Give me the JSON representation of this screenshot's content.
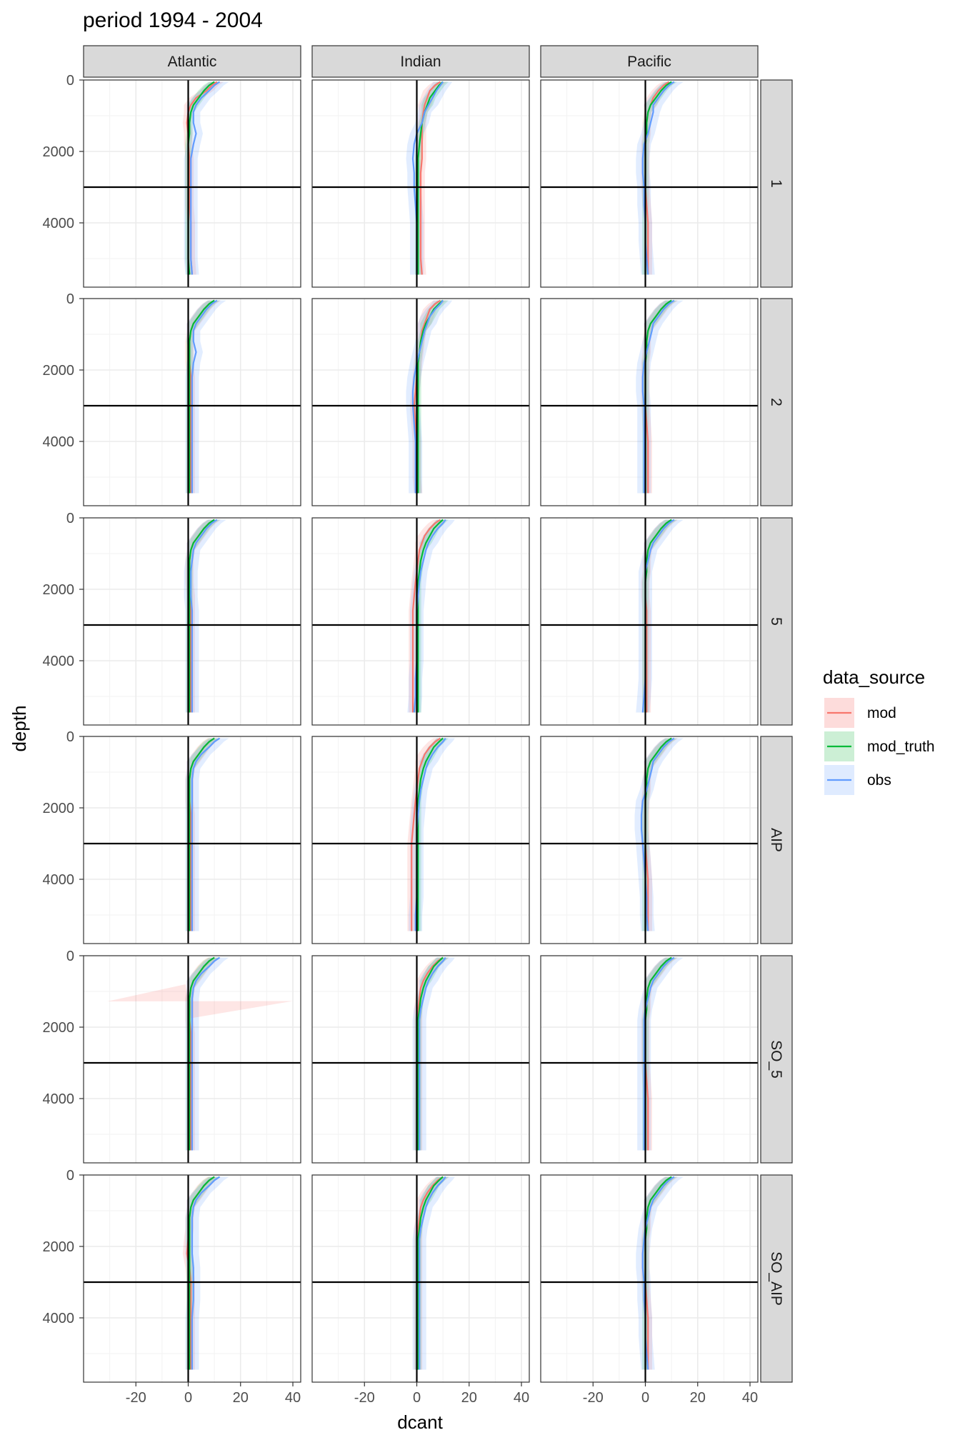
{
  "chart_data": {
    "type": "line",
    "title": "period 1994 - 2004",
    "xlabel": "dcant",
    "ylabel": "depth",
    "xlim": [
      -40,
      43
    ],
    "ylim": [
      0,
      5800
    ],
    "y_reversed": true,
    "x_ticks": [
      "-20",
      "0",
      "20",
      "40"
    ],
    "x_tick_values": [
      -20,
      0,
      20,
      40
    ],
    "y_ticks": [
      "0",
      "2000",
      "4000"
    ],
    "y_tick_values": [
      0,
      2000,
      4000
    ],
    "hline_depth": 3000,
    "vline_dcant": 0,
    "grid": true,
    "columns": [
      "Atlantic",
      "Indian",
      "Pacific"
    ],
    "rows": [
      "1",
      "2",
      "5",
      "AIP",
      "SO_5",
      "SO_AIP"
    ],
    "legend": {
      "title": "data_source",
      "position": "right",
      "entries": [
        {
          "name": "mod",
          "color": "#F8766D",
          "fill": "#FDDCDB"
        },
        {
          "name": "mod_truth",
          "color": "#00BA38",
          "fill": "#CCEFD5"
        },
        {
          "name": "obs",
          "color": "#619CFF",
          "fill": "#DFEBFF"
        }
      ]
    },
    "depths": [
      50,
      150,
      300,
      500,
      700,
      900,
      1200,
      1500,
      1800,
      2200,
      2600,
      3000,
      3500,
      4000,
      4500,
      5000,
      5450
    ],
    "panels": [
      {
        "row": "1",
        "col": "Atlantic",
        "mod": [
          11,
          9,
          7,
          3,
          1,
          0,
          -0.5,
          0,
          0,
          0.5,
          0.5,
          0.5,
          0.5,
          1,
          1,
          1,
          1.5
        ],
        "mod_truth": [
          10,
          8,
          6,
          4,
          2,
          1,
          0.5,
          0.5,
          0,
          0,
          0,
          0,
          0,
          0,
          0,
          0,
          0.5
        ],
        "obs": [
          12,
          10,
          8,
          5,
          3,
          2,
          2,
          3,
          2,
          1,
          1,
          1,
          1,
          1,
          1,
          1,
          1.5
        ]
      },
      {
        "row": "1",
        "col": "Indian",
        "mod": [
          9,
          7,
          5,
          4,
          3,
          2.5,
          2,
          2,
          2,
          2,
          1.5,
          1.5,
          1.5,
          1.5,
          1.5,
          1.5,
          2
        ],
        "mod_truth": [
          10,
          8.5,
          7,
          5,
          4,
          3,
          2,
          1.5,
          1,
          0.5,
          0.5,
          0.5,
          0.5,
          0.5,
          0.5,
          0.5,
          0.5
        ],
        "obs": [
          10,
          9,
          7.5,
          6,
          4.5,
          3,
          2,
          0,
          -1,
          -1.5,
          -1,
          -1,
          -0.5,
          0,
          0,
          0,
          0
        ]
      },
      {
        "row": "1",
        "col": "Pacific",
        "mod": [
          9,
          7,
          5,
          3,
          2,
          1,
          0.5,
          0.5,
          0,
          0,
          0,
          0,
          0.5,
          1,
          1,
          1,
          1
        ],
        "mod_truth": [
          10,
          8,
          6,
          4,
          2,
          1,
          0.5,
          0.5,
          0,
          0,
          0,
          0,
          0,
          0,
          0,
          0,
          0
        ],
        "obs": [
          11,
          9,
          7,
          5,
          3,
          3,
          2,
          1,
          -0.5,
          -1,
          -1,
          -0.5,
          -0.5,
          0,
          0,
          0.5,
          1
        ]
      },
      {
        "row": "2",
        "col": "Atlantic",
        "mod": [
          10,
          8,
          6,
          4,
          2,
          1,
          0.5,
          0.5,
          0.5,
          1,
          1,
          1,
          1,
          1,
          1,
          1,
          1
        ],
        "mod_truth": [
          10,
          8,
          6,
          4,
          2,
          1,
          0.5,
          0.5,
          0.5,
          0.5,
          0.5,
          0.5,
          0.5,
          0.5,
          0.5,
          0.5,
          0.5
        ],
        "obs": [
          11,
          9,
          7,
          5,
          3,
          2,
          2,
          3,
          2,
          1.5,
          1.5,
          1.5,
          1.5,
          1.5,
          1.5,
          1.5,
          1.5
        ]
      },
      {
        "row": "2",
        "col": "Indian",
        "mod": [
          9,
          7,
          5,
          4,
          3,
          2,
          1.5,
          1,
          0.5,
          0,
          -0.5,
          -1,
          -0.5,
          0,
          0,
          0,
          0.5
        ],
        "mod_truth": [
          10,
          8.5,
          6.5,
          5,
          3.5,
          2.5,
          1.5,
          1,
          0.5,
          0.5,
          0.5,
          0.5,
          0.5,
          0.5,
          0.5,
          0.5,
          0.5
        ],
        "obs": [
          10,
          9,
          7,
          5,
          4,
          3,
          2,
          1,
          0,
          -1,
          -1.5,
          -1.5,
          -1,
          -0.5,
          -0.5,
          -0.5,
          -0.5
        ]
      },
      {
        "row": "2",
        "col": "Pacific",
        "mod": [
          10,
          8,
          6,
          4,
          2,
          1,
          0.5,
          0.5,
          0,
          0,
          0,
          0,
          0.5,
          1,
          1,
          1,
          1
        ],
        "mod_truth": [
          10,
          8,
          6,
          4,
          2,
          1,
          0.5,
          0.5,
          0,
          0,
          0,
          0,
          0,
          0,
          0,
          0,
          0
        ],
        "obs": [
          11,
          9,
          7,
          5,
          3,
          2.5,
          1.5,
          0.5,
          -0.5,
          -1,
          -1,
          -0.5,
          -0.5,
          -0.5,
          -0.5,
          -0.5,
          -0.5
        ]
      },
      {
        "row": "5",
        "col": "Atlantic",
        "mod": [
          10,
          8,
          6,
          4,
          2,
          1,
          0.5,
          0.5,
          0.5,
          1,
          1,
          1,
          1,
          1,
          1,
          1,
          1
        ],
        "mod_truth": [
          10,
          8,
          6,
          4,
          2,
          1,
          0.5,
          0.5,
          0.5,
          0.5,
          0.5,
          0.5,
          0.5,
          0.5,
          0.5,
          0.5,
          0.5
        ],
        "obs": [
          11,
          9,
          7,
          5,
          3,
          2,
          1.5,
          1,
          1,
          1,
          1.5,
          1.5,
          1.5,
          1.5,
          1.5,
          1.5,
          1.5
        ]
      },
      {
        "row": "5",
        "col": "Indian",
        "mod": [
          9,
          7,
          5,
          3,
          2,
          1,
          0.5,
          0,
          -0.5,
          -1,
          -1.5,
          -1.5,
          -1.5,
          -1.5,
          -1.5,
          -1.5,
          -1.5
        ],
        "mod_truth": [
          10,
          8.5,
          6.5,
          5,
          3.5,
          2.5,
          1.5,
          1,
          0.5,
          0.5,
          0.5,
          0.5,
          0.5,
          0.5,
          0.5,
          0.5,
          0.5
        ],
        "obs": [
          11,
          10,
          8,
          6,
          4.5,
          3.5,
          2.5,
          1.5,
          1,
          0.5,
          0,
          0,
          0,
          0,
          -0.5,
          -0.5,
          -1
        ]
      },
      {
        "row": "5",
        "col": "Pacific",
        "mod": [
          10,
          8,
          6,
          4,
          2,
          1,
          0.5,
          0.5,
          0,
          0,
          0.5,
          0.5,
          0.5,
          0.5,
          0.5,
          0.5,
          0.5
        ],
        "mod_truth": [
          10,
          8,
          6,
          4,
          2,
          1,
          0.5,
          0.5,
          0,
          0,
          0,
          0,
          0,
          0,
          0,
          0,
          0
        ],
        "obs": [
          11,
          9,
          7,
          5,
          3,
          2,
          1,
          0,
          0,
          0,
          0,
          0,
          0,
          0,
          0,
          -0.5,
          -1
        ]
      },
      {
        "row": "AIP",
        "col": "Atlantic",
        "mod": [
          10,
          8,
          6,
          4,
          2,
          1,
          0.5,
          0.5,
          0.5,
          1,
          1,
          1,
          1,
          1,
          1,
          1,
          1
        ],
        "mod_truth": [
          10,
          8,
          6,
          4,
          2,
          1,
          0.5,
          0.5,
          0.5,
          0.5,
          0.5,
          0.5,
          0.5,
          0.5,
          0.5,
          0.5,
          0.5
        ],
        "obs": [
          12,
          10,
          8,
          5,
          3,
          2,
          1.5,
          1.5,
          1.5,
          1.5,
          1.5,
          1.5,
          1.5,
          1.5,
          1.5,
          1.5,
          1.5
        ]
      },
      {
        "row": "AIP",
        "col": "Indian",
        "mod": [
          9,
          7,
          5,
          3,
          2,
          1,
          0.5,
          0,
          -0.5,
          -1,
          -1.5,
          -2,
          -2,
          -2,
          -2,
          -2,
          -2
        ],
        "mod_truth": [
          10,
          8.5,
          6.5,
          5,
          3.5,
          2.5,
          1.5,
          1,
          0.5,
          0.5,
          0.5,
          0.5,
          0.5,
          0.5,
          0.5,
          0.5,
          0.5
        ],
        "obs": [
          11,
          10,
          8,
          6,
          4.5,
          3.5,
          2.5,
          1.5,
          1,
          0.5,
          0,
          0,
          0,
          0,
          0,
          -0.5,
          -0.5
        ]
      },
      {
        "row": "AIP",
        "col": "Pacific",
        "mod": [
          10,
          8,
          6,
          4,
          2,
          1,
          0.5,
          0.5,
          0,
          0,
          0,
          0,
          0.5,
          1,
          1,
          1,
          1
        ],
        "mod_truth": [
          10,
          8,
          6,
          4,
          2,
          1,
          0.5,
          0.5,
          0,
          0,
          0,
          0,
          0,
          0,
          0,
          0,
          0
        ],
        "obs": [
          11,
          9,
          7,
          5,
          3,
          2.5,
          1.5,
          0.5,
          -1,
          -1.5,
          -1.5,
          -1,
          -0.5,
          0,
          0.5,
          0.5,
          1
        ]
      },
      {
        "row": "SO_5",
        "col": "Atlantic",
        "mod": [
          10,
          8,
          6,
          4,
          2,
          1,
          0.5,
          0.5,
          0.5,
          1,
          1,
          1,
          1,
          1,
          1,
          1,
          1
        ],
        "mod_truth": [
          10,
          8,
          6,
          4,
          2,
          1,
          0.5,
          0.5,
          0.5,
          0.5,
          0.5,
          0.5,
          0.5,
          0.5,
          0.5,
          0.5,
          0.5
        ],
        "obs": [
          12,
          10,
          8,
          5,
          3,
          2,
          1.5,
          1.5,
          1.5,
          1.5,
          1.5,
          1.5,
          1.5,
          1.5,
          1.5,
          1.5,
          1.5
        ]
      },
      {
        "row": "SO_5",
        "col": "Indian",
        "mod": [
          10,
          8,
          6,
          4,
          2.5,
          1.5,
          1,
          0.5,
          0.5,
          0.5,
          0.5,
          0.5,
          0.5,
          0.5,
          0.5,
          0.5,
          0.5
        ],
        "mod_truth": [
          10,
          8.5,
          6.5,
          5,
          3.5,
          2.5,
          1.5,
          1,
          0.5,
          0.5,
          0.5,
          0.5,
          0.5,
          0.5,
          0.5,
          0.5,
          0.5
        ],
        "obs": [
          11,
          10,
          8,
          6,
          4.5,
          3.5,
          2.5,
          1.5,
          1,
          1,
          1,
          1,
          1,
          1,
          1,
          1,
          1
        ]
      },
      {
        "row": "SO_5",
        "col": "Pacific",
        "mod": [
          10,
          8,
          6,
          4,
          2,
          1,
          0.5,
          0.5,
          0,
          0,
          0,
          0,
          0.5,
          1,
          1,
          1,
          1
        ],
        "mod_truth": [
          10,
          8,
          6,
          4,
          2,
          1,
          0.5,
          0.5,
          0,
          0,
          0,
          0,
          0,
          0,
          0,
          0,
          0
        ],
        "obs": [
          11,
          9,
          7,
          5,
          3,
          2,
          1,
          0,
          -0.5,
          -0.5,
          -0.5,
          -0.5,
          -0.5,
          -0.5,
          -0.5,
          -0.5,
          -0.5
        ]
      },
      {
        "row": "SO_AIP",
        "col": "Atlantic",
        "mod": [
          10,
          8,
          6,
          4,
          2,
          1,
          0.5,
          0.5,
          0,
          -0.5,
          0.5,
          1,
          1,
          1,
          1,
          1,
          1
        ],
        "mod_truth": [
          10,
          8,
          6,
          4,
          2,
          1,
          0.5,
          0.5,
          0.5,
          0.5,
          0.5,
          0.5,
          0.5,
          0.5,
          0.5,
          0.5,
          0.5
        ],
        "obs": [
          12,
          10,
          8,
          5,
          3,
          2,
          1.5,
          1.5,
          1.5,
          1.5,
          2,
          2,
          2,
          1.5,
          1.5,
          1.5,
          1.5
        ]
      },
      {
        "row": "SO_AIP",
        "col": "Indian",
        "mod": [
          10,
          8,
          6,
          4,
          2.5,
          1.5,
          1,
          0.5,
          0.5,
          0.5,
          0.5,
          0.5,
          0.5,
          0.5,
          0.5,
          0.5,
          0.5
        ],
        "mod_truth": [
          10,
          8.5,
          6.5,
          5,
          3.5,
          2.5,
          1.5,
          1,
          0.5,
          0.5,
          0.5,
          0.5,
          0.5,
          0.5,
          0.5,
          0.5,
          0.5
        ],
        "obs": [
          11,
          10,
          8,
          6,
          4.5,
          3.5,
          2.5,
          1.5,
          1,
          1,
          1,
          1,
          1,
          1,
          1,
          1,
          1
        ]
      },
      {
        "row": "SO_AIP",
        "col": "Pacific",
        "mod": [
          10,
          8,
          6,
          4,
          2,
          1,
          0.5,
          0.5,
          0,
          0,
          0,
          0,
          0.5,
          1,
          1,
          1,
          1
        ],
        "mod_truth": [
          10,
          8,
          6,
          4,
          2,
          1,
          0.5,
          0.5,
          0,
          0,
          0,
          0,
          0,
          0,
          0,
          0,
          0
        ],
        "obs": [
          11,
          9,
          7,
          5,
          3,
          2,
          1,
          0,
          -0.5,
          -1,
          -1,
          -0.5,
          -0.5,
          0,
          0,
          0.5,
          1
        ]
      }
    ]
  }
}
